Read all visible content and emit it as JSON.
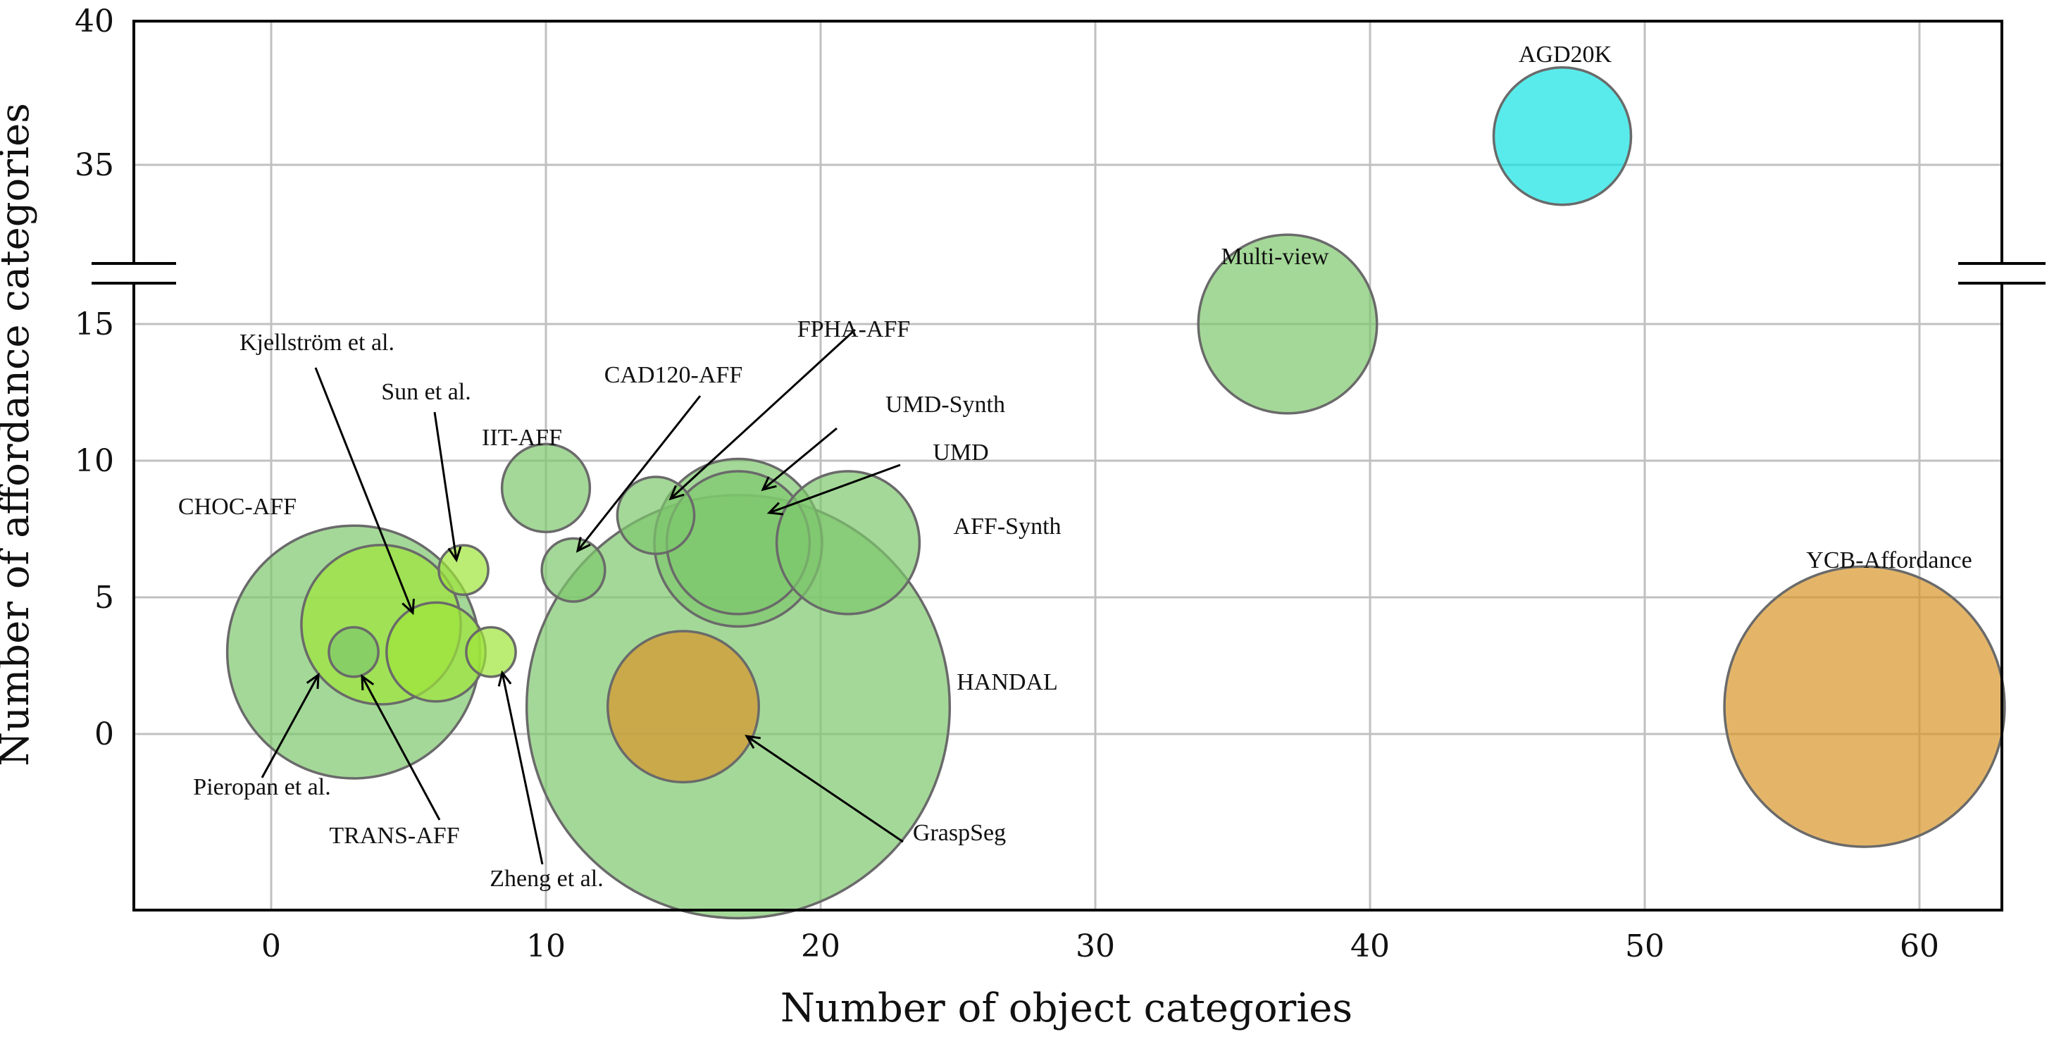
{
  "chart_data": {
    "type": "scatter",
    "subtype": "bubble",
    "xlabel": "Number of object categories",
    "ylabel": "Number of affordance categories",
    "xlim": [
      -5,
      63
    ],
    "ylim": [
      -7,
      40
    ],
    "y_axis_break": {
      "lower_top": 19,
      "upper_bottom": 33
    },
    "x_ticks": [
      "0",
      "10",
      "20",
      "30",
      "40",
      "50",
      "60"
    ],
    "y_ticks": [
      "0",
      "5",
      "10",
      "15",
      "35",
      "40"
    ],
    "grid": true,
    "legend": "none",
    "colors": {
      "green": "#7ec86c",
      "lime": "#9ee63a",
      "orange": "#d8952a",
      "cyan": "#12e2e2",
      "bubble_edge": "#6a6a6a"
    },
    "points": [
      {
        "name": "CHOC-AFF",
        "x": 3,
        "y": 3,
        "size": 4.6,
        "color": "green"
      },
      {
        "name": "Kjellström et al.",
        "x": 4,
        "y": 4,
        "size": 2.9,
        "color": "lime"
      },
      {
        "name": "Sun et al.",
        "x": 7,
        "y": 6,
        "size": 0.9,
        "color": "lime"
      },
      {
        "name": "Pieropan et al.",
        "x": 3,
        "y": 3,
        "size": 0.9,
        "color": "green"
      },
      {
        "name": "TRANS-AFF",
        "x": 6,
        "y": 3,
        "size": 1.8,
        "color": "lime"
      },
      {
        "name": "Zheng et al.",
        "x": 8,
        "y": 3,
        "size": 0.9,
        "color": "lime"
      },
      {
        "name": "IIT-AFF",
        "x": 10,
        "y": 9,
        "size": 1.6,
        "color": "green"
      },
      {
        "name": "CAD120-AFF",
        "x": 11,
        "y": 6,
        "size": 1.15,
        "color": "green"
      },
      {
        "name": "FPHA-AFF",
        "x": 14,
        "y": 8,
        "size": 1.4,
        "color": "green"
      },
      {
        "name": "UMD-Synth",
        "x": 17,
        "y": 7,
        "size": 3.05,
        "color": "green"
      },
      {
        "name": "UMD",
        "x": 17,
        "y": 7,
        "size": 2.6,
        "color": "green"
      },
      {
        "name": "AFF-Synth",
        "x": 21,
        "y": 7,
        "size": 2.6,
        "color": "green"
      },
      {
        "name": "HANDAL",
        "x": 17,
        "y": 1,
        "size": 7.7,
        "color": "green"
      },
      {
        "name": "GraspSeg",
        "x": 15,
        "y": 1,
        "size": 2.75,
        "color": "orange"
      },
      {
        "name": "Multi-view",
        "x": 37,
        "y": 15,
        "size": 3.25,
        "color": "green"
      },
      {
        "name": "AGD20K",
        "x": 47,
        "y": 36,
        "size": 2.5,
        "color": "cyan"
      },
      {
        "name": "YCB-Affordance",
        "x": 58,
        "y": 1,
        "size": 5.1,
        "color": "orange"
      }
    ]
  }
}
